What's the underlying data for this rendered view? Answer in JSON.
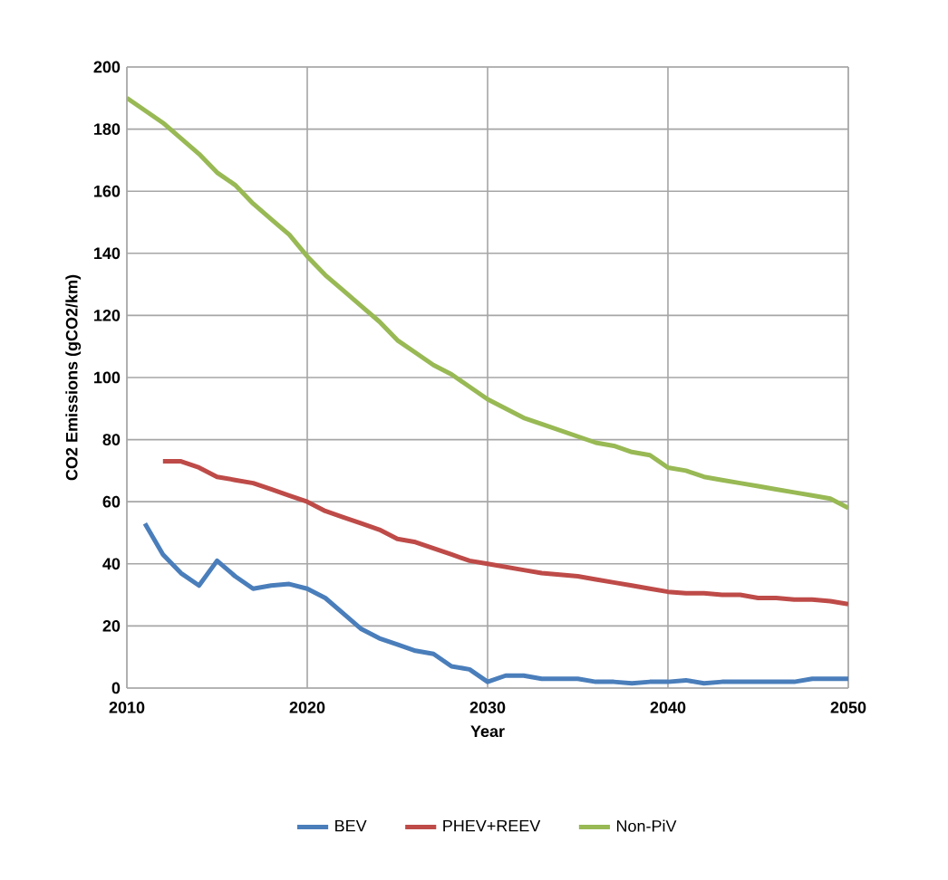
{
  "chart_data": {
    "type": "line",
    "xlabel": "Year",
    "ylabel": "CO2 Emissions (gCO2/km)",
    "xlim": [
      2010,
      2050
    ],
    "xticks": [
      2010,
      2020,
      2030,
      2040,
      2050
    ],
    "ylim": [
      0,
      200
    ],
    "yticks": [
      0,
      20,
      40,
      60,
      80,
      100,
      120,
      140,
      160,
      180,
      200
    ],
    "grid": true,
    "legend": "bottom",
    "marker": "none",
    "line_style": "solid",
    "series": [
      {
        "name": "BEV",
        "color": "#4a7ebb",
        "x": [
          2011,
          2012,
          2013,
          2014,
          2015,
          2016,
          2017,
          2018,
          2019,
          2020,
          2021,
          2022,
          2023,
          2024,
          2025,
          2026,
          2027,
          2028,
          2029,
          2030,
          2031,
          2032,
          2033,
          2034,
          2035,
          2036,
          2037,
          2038,
          2039,
          2040,
          2041,
          2042,
          2043,
          2044,
          2045,
          2046,
          2047,
          2048,
          2049,
          2050
        ],
        "values": [
          53,
          43,
          37,
          33,
          41,
          36,
          32,
          33,
          33.5,
          32,
          29,
          24,
          19,
          16,
          14,
          12,
          11,
          7,
          6,
          2,
          4,
          4,
          3,
          3,
          3,
          2,
          2,
          1.5,
          2,
          2,
          2.5,
          1.5,
          2,
          2,
          2,
          2,
          2,
          3,
          3,
          3
        ]
      },
      {
        "name": "PHEV+REEV",
        "color": "#be4b48",
        "x": [
          2012,
          2013,
          2014,
          2015,
          2016,
          2017,
          2018,
          2019,
          2020,
          2021,
          2022,
          2023,
          2024,
          2025,
          2026,
          2027,
          2028,
          2029,
          2030,
          2031,
          2032,
          2033,
          2034,
          2035,
          2036,
          2037,
          2038,
          2039,
          2040,
          2041,
          2042,
          2043,
          2044,
          2045,
          2046,
          2047,
          2048,
          2049,
          2050
        ],
        "values": [
          73,
          73,
          71,
          68,
          67,
          66,
          64,
          62,
          60,
          57,
          55,
          53,
          51,
          48,
          47,
          45,
          43,
          41,
          40,
          39,
          38,
          37,
          36.5,
          36,
          35,
          34,
          33,
          32,
          31,
          30.5,
          30.5,
          30,
          30,
          29,
          29,
          28.5,
          28.5,
          28,
          27
        ]
      },
      {
        "name": "Non-PiV",
        "color": "#98b954",
        "x": [
          2010,
          2011,
          2012,
          2013,
          2014,
          2015,
          2016,
          2017,
          2018,
          2019,
          2020,
          2021,
          2022,
          2023,
          2024,
          2025,
          2026,
          2027,
          2028,
          2029,
          2030,
          2031,
          2032,
          2033,
          2034,
          2035,
          2036,
          2037,
          2038,
          2039,
          2040,
          2041,
          2042,
          2043,
          2044,
          2045,
          2046,
          2047,
          2048,
          2049,
          2050
        ],
        "values": [
          190,
          186,
          182,
          177,
          172,
          166,
          162,
          156,
          151,
          146,
          139,
          133,
          128,
          123,
          118,
          112,
          108,
          104,
          101,
          97,
          93,
          90,
          87,
          85,
          83,
          81,
          79,
          78,
          76,
          75,
          71,
          70,
          68,
          67,
          66,
          65,
          64,
          63,
          62,
          61,
          58
        ]
      }
    ]
  }
}
